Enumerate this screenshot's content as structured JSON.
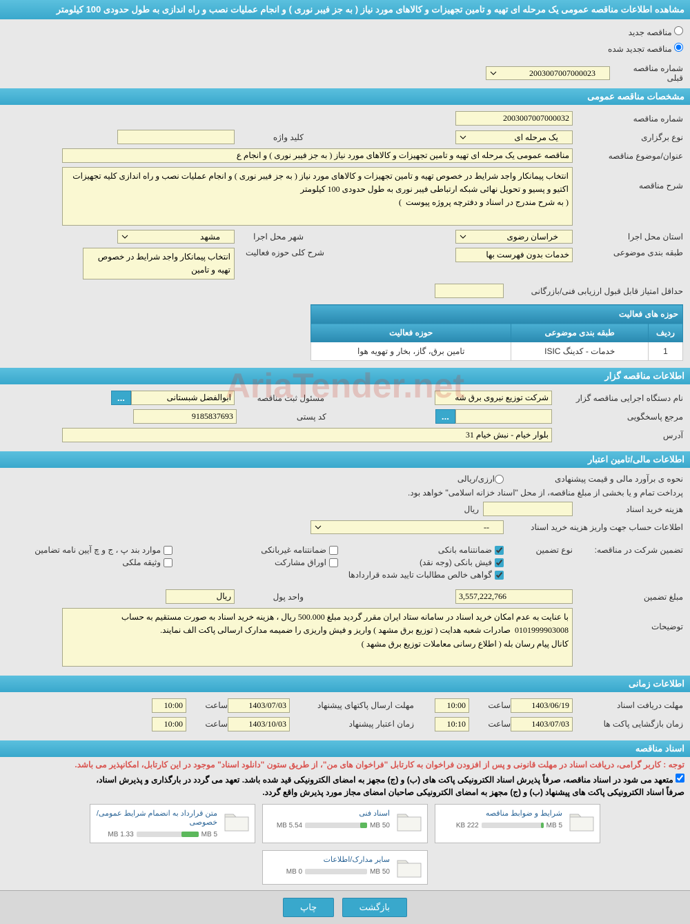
{
  "header": {
    "title": "مشاهده اطلاعات مناقصه عمومی یک مرحله ای تهیه و تامین تجهیزات و کالاهای مورد نیاز ( به جز فیبر نوری ) و انجام عملیات نصب و راه اندازی به طول حدودی 100 کیلومتر"
  },
  "tender_status": {
    "new_label": "مناقصه جدید",
    "renewed_label": "مناقصه تجدید شده",
    "prev_label": "شماره مناقصه قبلی",
    "prev_value": "2003007007000023"
  },
  "sections": {
    "general": "مشخصات مناقصه عمومی",
    "tenderer": "اطلاعات مناقصه گزار",
    "financial": "اطلاعات مالی/تامین اعتبار",
    "timing": "اطلاعات زمانی",
    "documents": "اسناد مناقصه"
  },
  "general": {
    "number_label": "شماره مناقصه",
    "number_value": "2003007007000032",
    "type_label": "نوع برگزاری",
    "type_value": "یک مرحله ای",
    "keyword_label": "کلید واژه",
    "keyword_value": "",
    "subject_label": "عنوان/موضوع مناقصه",
    "subject_value": "مناقصه عمومی یک مرحله ای تهیه و تامین تجهیزات و کالاهای مورد نیاز ( به جز فیبر نوری ) و انجام ع",
    "desc_label": "شرح مناقصه",
    "desc_value": "انتخاب پیمانکار واجد شرایط در خصوص تهیه و تامین تجهیزات و کالاهای مورد نیاز ( به جز فیبر نوری ) و انجام عملیات نصب و راه اندازی کلیه تجهیزات اکتیو و پسیو و تحویل نهائی شبکه ارتباطی فیبر نوری به طول حدودی 100 کیلومتر\n( به شرح مندرج در اسناد و دفترچه پروژه پیوست  )",
    "province_label": "استان محل اجرا",
    "province_value": "خراسان رضوی",
    "city_label": "شهر محل اجرا",
    "city_value": "مشهد",
    "category_label": "طبقه بندی موضوعی",
    "category_value": "خدمات بدون فهرست بها",
    "scope_desc_label": "شرح کلی حوزه فعالیت",
    "scope_desc_value": "انتخاب پیمانکار واجد شرایط در خصوص تهیه و تامین",
    "min_score_label": "حداقل امتیاز قابل قبول ارزیابی فنی/بازرگانی",
    "min_score_value": ""
  },
  "activities": {
    "title": "حوزه های فعالیت",
    "headers": {
      "row": "ردیف",
      "category": "طبقه بندی موضوعی",
      "scope": "حوزه فعالیت"
    },
    "rows": [
      {
        "idx": "1",
        "category": "خدمات - کدینگ ISIC",
        "scope": "تامین برق، گاز، بخار و تهویه هوا"
      }
    ]
  },
  "tenderer": {
    "org_label": "نام دستگاه اجرایی مناقصه گزار",
    "org_value": "شرکت توزیع نیروی برق شه",
    "registrar_label": "مسئول ثبت مناقصه",
    "registrar_value": "ابوالفضل شبستانی",
    "responder_label": "مرجع پاسخگویی",
    "responder_value": "",
    "postal_label": "کد پستی",
    "postal_value": "9185837693",
    "address_label": "آدرس",
    "address_value": "بلوار خیام - نبش خیام 31"
  },
  "financial": {
    "estimate_label": "نحوه ی برآورد مالی و قیمت پیشنهادی",
    "currency_option": "ارزی/ریالی",
    "treasury_note": "پرداخت تمام و یا بخشی از مبلغ مناقصه، از محل \"اسناد خزانه اسلامی\" خواهد بود.",
    "purchase_cost_label": "هزینه خرید اسناد",
    "purchase_cost_value": "",
    "rial_unit": "ریال",
    "account_info_label": "اطلاعات حساب جهت واریز هزینه خرید اسناد",
    "account_info_value": "--",
    "guarantee_label": "تضمین شرکت در مناقصه:",
    "guarantee_type_label": "نوع تضمین",
    "guarantees": {
      "bank": "ضمانتنامه بانکی",
      "nonbank": "ضمانتنامه غیربانکی",
      "clauses": "موارد بند پ ، ج و چ آیین نامه تضامین",
      "cash": "فیش بانکی (وجه نقد)",
      "bonds": "اوراق مشارکت",
      "property": "وثیقه ملکی",
      "receivables": "گواهی خالص مطالبات تایید شده قراردادها"
    },
    "amount_label": "مبلغ تضمین",
    "amount_value": "3,557,222,766",
    "currency_label": "واحد پول",
    "currency_value": "ریال",
    "notes_label": "توضیحات",
    "notes_value": "با عنایت به عدم امکان خرید اسناد در سامانه ستاد ایران مقرر گردید مبلغ 500.000 ریال ، هزینه خرید اسناد به صورت مستقیم به حساب 0101999903008  صادرات شعبه هدایت ( توزیع برق مشهد ) واریز و فیش واریزی را ضمیمه مدارک ارسالی پاکت الف نمایند.\nکانال پیام رسان بله ( اطلاع رسانی معاملات توزیع برق مشهد )"
  },
  "timing": {
    "receive_deadline_label": "مهلت دریافت اسناد",
    "receive_date": "1403/06/19",
    "time_label": "ساعت",
    "receive_time": "10:00",
    "submit_deadline_label": "مهلت ارسال پاکتهای پیشنهاد",
    "submit_date": "1403/07/03",
    "submit_time": "10:00",
    "opening_label": "زمان بازگشایی پاکت ها",
    "opening_date": "1403/07/03",
    "opening_time": "10:10",
    "validity_label": "زمان اعتبار پیشنهاد",
    "validity_date": "1403/10/03",
    "validity_time": "10:00"
  },
  "documents": {
    "attention": "توجه : کاربر گرامی، دریافت اسناد در مهلت قانونی و پس از افزودن فراخوان به کارتابل \"فراخوان های من\"، از طریق ستون \"دانلود اسناد\" موجود در این کارتابل، امکانپذیر می باشد.",
    "commit1": "متعهد می شود در اسناد مناقصه، صرفاً پذیرش اسناد الکترونیکی پاکت های (ب) و (ج) مجهز به امضای الکترونیکی قید شده باشد. تعهد می گردد در بارگذاری و پذیرش اسناد،",
    "commit2": "صرفاً اسناد الکترونیکی پاکت های پیشنهاد (ب) و (ج) مجهز به امضای الکترونیکی صاحبان امضای مجاز مورد پذیرش واقع گردد.",
    "files": [
      {
        "title": "شرایط و ضوابط مناقصه",
        "size": "222 KB",
        "limit": "5 MB",
        "fill_pct": 4
      },
      {
        "title": "اسناد فنی",
        "size": "5.54 MB",
        "limit": "50 MB",
        "fill_pct": 11
      },
      {
        "title": "متن قرارداد به انضمام شرایط عمومی/خصوصی",
        "size": "1.33 MB",
        "limit": "5 MB",
        "fill_pct": 27
      },
      {
        "title": "سایر مدارک/اطلاعات",
        "size": "0 MB",
        "limit": "50 MB",
        "fill_pct": 0
      }
    ]
  },
  "footer": {
    "back": "بازگشت",
    "print": "چاپ"
  },
  "watermark": "AriaTender.net"
}
